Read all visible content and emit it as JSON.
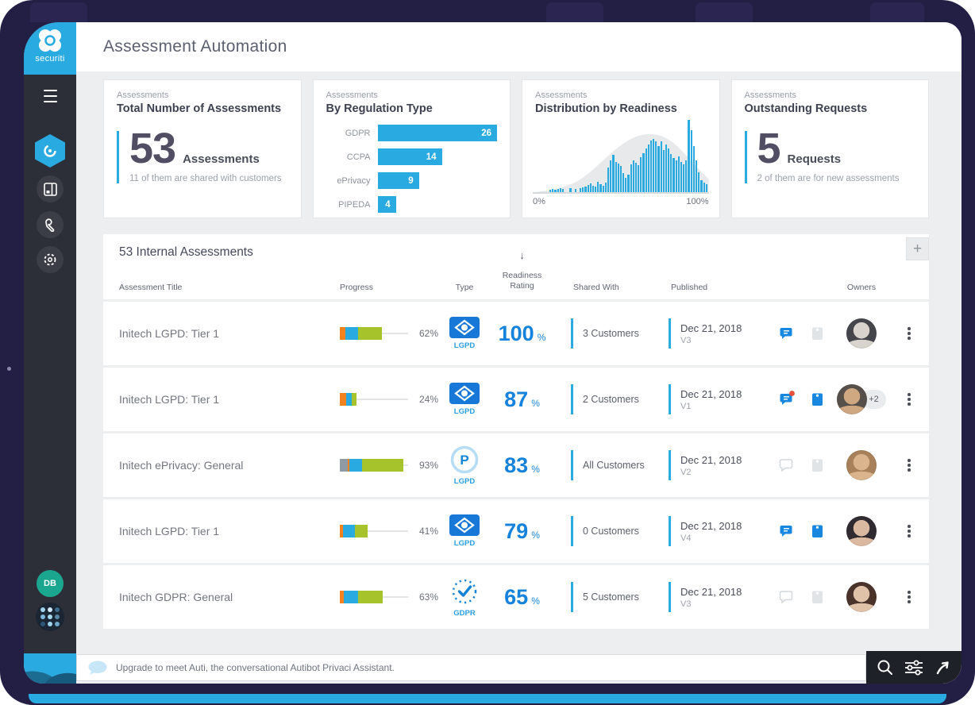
{
  "colors": {
    "accent_blue": "#29abe2",
    "readiness_blue": "#1583db",
    "frame_navy": "#221e44",
    "sidebar_dark": "#2d2f38",
    "bar_orange": "#f2821d",
    "bar_green": "#a6c32b",
    "bar_gray": "#8e9ba3"
  },
  "sidebar": {
    "brand": "securiti",
    "user_initials": "DB",
    "nav": [
      "assessment-hexagon",
      "apps-panel",
      "tools-wrench",
      "settings-gear"
    ]
  },
  "header": {
    "title": "Assessment Automation"
  },
  "cards": [
    {
      "eyebrow": "Assessments",
      "title": "Total Number of Assessments",
      "stat": "53",
      "unit": "Assessments",
      "note": "11 of them are shared with customers"
    },
    {
      "eyebrow": "Assessments",
      "title": "By Regulation Type"
    },
    {
      "eyebrow": "Assessments",
      "title": "Distribution by Readiness"
    },
    {
      "eyebrow": "Assessments",
      "title": "Outstanding Requests",
      "stat": "5",
      "unit": "Requests",
      "note": "2 of them are for new assessments"
    }
  ],
  "chart_data": [
    {
      "type": "bar",
      "orientation": "horizontal",
      "title": "By Regulation Type",
      "categories": [
        "GDPR",
        "CCPA",
        "ePrivacy",
        "PIPEDA"
      ],
      "values": [
        26,
        14,
        9,
        4
      ],
      "max": 26,
      "bar_color": "#29abe2",
      "value_labels": "inside-end"
    },
    {
      "type": "bar",
      "subtype": "histogram",
      "title": "Distribution by Readiness",
      "xlabel_left": "0%",
      "xlabel_right": "100%",
      "x_range": [
        0,
        100
      ],
      "bar_color": "#29abe2",
      "overlay": "gray bell curve",
      "values": [
        0,
        0,
        0,
        0,
        0,
        0,
        3,
        4,
        3,
        4,
        5,
        4,
        0,
        0,
        5,
        0,
        4,
        0,
        6,
        7,
        8,
        10,
        12,
        9,
        8,
        14,
        11,
        9,
        13,
        34,
        44,
        52,
        42,
        40,
        36,
        26,
        20,
        24,
        38,
        44,
        41,
        37,
        48,
        54,
        60,
        66,
        71,
        74,
        70,
        64,
        70,
        58,
        66,
        60,
        53,
        47,
        44,
        49,
        42,
        38,
        44,
        100,
        86,
        64,
        44,
        27,
        17,
        13,
        11
      ]
    }
  ],
  "table": {
    "title": "53 Internal Assessments",
    "add_label": "+",
    "sort_icon": "↓",
    "percent_suffix": "%",
    "columns": [
      "Assessment Title",
      "Progress",
      "Type",
      "Readiness Rating",
      "Shared With",
      "Published",
      "Owners"
    ],
    "rows": [
      {
        "title": "Initech LGPD: Tier 1",
        "progress": 62,
        "progress_label": "62%",
        "segments": [
          {
            "c": "#f2821d",
            "w": 14
          },
          {
            "c": "#29abe2",
            "w": 30
          },
          {
            "c": "#a6c32b",
            "w": 56
          }
        ],
        "type": "lgpd",
        "type_label": "LGPD",
        "readiness": "100",
        "shared": "3 Customers",
        "date": "Dec 21, 2018",
        "version": "V3",
        "chat": "active",
        "chat_dot": false,
        "doc": "muted",
        "avatar": {
          "hair": "#45454c",
          "face": "#d8d3cd"
        },
        "extra": ""
      },
      {
        "title": "Initech LGPD: Tier 1",
        "progress": 24,
        "progress_label": "24%",
        "segments": [
          {
            "c": "#f2821d",
            "w": 38
          },
          {
            "c": "#29abe2",
            "w": 34
          },
          {
            "c": "#a6c32b",
            "w": 28
          }
        ],
        "type": "lgpd",
        "type_label": "LGPD",
        "readiness": "87",
        "shared": "2 Customers",
        "date": "Dec 21, 2018",
        "version": "V1",
        "chat": "active",
        "chat_dot": true,
        "doc": "active",
        "avatar": {
          "hair": "#57504a",
          "face": "#cfa781"
        },
        "extra": "+2"
      },
      {
        "title": "Initech ePrivacy: General",
        "progress": 93,
        "progress_label": "93%",
        "segments": [
          {
            "c": "#8e9ba3",
            "w": 12
          },
          {
            "c": "#f2821d",
            "w": 3
          },
          {
            "c": "#29abe2",
            "w": 20
          },
          {
            "c": "#a6c32b",
            "w": 65
          }
        ],
        "type": "eprivacy",
        "type_label": "LGPD",
        "readiness": "83",
        "shared": "All Customers",
        "date": "Dec 21, 2018",
        "version": "V2",
        "chat": "muted",
        "chat_dot": false,
        "doc": "muted",
        "avatar": {
          "hair": "#a8815a",
          "face": "#d9b48c"
        },
        "extra": ""
      },
      {
        "title": "Initech LGPD: Tier 1",
        "progress": 41,
        "progress_label": "41%",
        "segments": [
          {
            "c": "#f2821d",
            "w": 12
          },
          {
            "c": "#29abe2",
            "w": 42
          },
          {
            "c": "#a6c32b",
            "w": 46
          }
        ],
        "type": "lgpd",
        "type_label": "LGPD",
        "readiness": "79",
        "shared": "0 Customers",
        "date": "Dec 21, 2018",
        "version": "V4",
        "chat": "active",
        "chat_dot": false,
        "doc": "active",
        "avatar": {
          "hair": "#2f2b30",
          "face": "#dbb9a0"
        },
        "extra": ""
      },
      {
        "title": "Initech GDPR: General",
        "progress": 63,
        "progress_label": "63%",
        "segments": [
          {
            "c": "#f2821d",
            "w": 9
          },
          {
            "c": "#29abe2",
            "w": 33
          },
          {
            "c": "#a6c32b",
            "w": 58
          }
        ],
        "type": "gdpr",
        "type_label": "GDPR",
        "readiness": "65",
        "shared": "5 Customers",
        "date": "Dec 21, 2018",
        "version": "V3",
        "chat": "muted",
        "chat_dot": false,
        "doc": "muted",
        "avatar": {
          "hair": "#4a332a",
          "face": "#e0c2a8"
        },
        "extra": ""
      }
    ]
  },
  "assistant": {
    "message": "Upgrade to meet Auti, the conversational Autibot Privaci Assistant."
  },
  "dock": {
    "icons": [
      "search",
      "filters",
      "launch"
    ]
  }
}
